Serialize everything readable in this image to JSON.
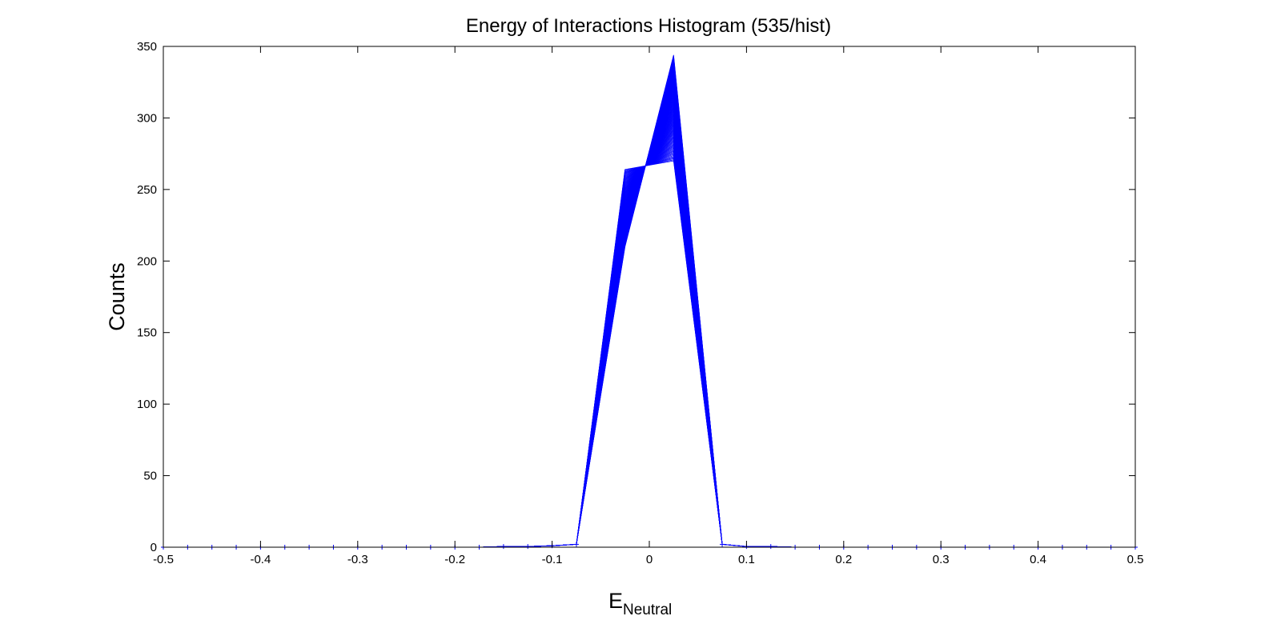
{
  "chart_data": {
    "type": "line",
    "title": "Energy of Interactions Histogram (535/hist)",
    "ylabel": "Counts",
    "xlabel_main": "E",
    "xlabel_sub": "Neutral",
    "xlim": [
      -0.5,
      0.5
    ],
    "ylim": [
      0,
      350
    ],
    "x_ticks": [
      -0.5,
      -0.4,
      -0.3,
      -0.2,
      -0.1,
      0,
      0.1,
      0.2,
      0.3,
      0.4,
      0.5
    ],
    "x_tick_labels": [
      "-0.5",
      "-0.4",
      "-0.3",
      "-0.2",
      "-0.1",
      "0",
      "0.1",
      "0.2",
      "0.3",
      "0.4",
      "0.5"
    ],
    "y_ticks": [
      0,
      50,
      100,
      150,
      200,
      250,
      300,
      350
    ],
    "y_tick_labels": [
      "0",
      "50",
      "100",
      "150",
      "200",
      "250",
      "300",
      "350"
    ],
    "grid": false,
    "line_color": "#0000ff",
    "marker": "+",
    "series_count": 100,
    "x": [
      -0.5,
      -0.475,
      -0.45,
      -0.425,
      -0.4,
      -0.375,
      -0.35,
      -0.325,
      -0.3,
      -0.275,
      -0.25,
      -0.225,
      -0.2,
      -0.175,
      -0.15,
      -0.125,
      -0.1,
      -0.075,
      -0.025,
      0.025,
      0.075,
      0.1,
      0.125,
      0.15,
      0.175,
      0.2,
      0.225,
      0.25,
      0.275,
      0.3,
      0.325,
      0.35,
      0.375,
      0.4,
      0.425,
      0.45,
      0.475,
      0.5
    ],
    "envelope": {
      "shared_values": [
        0,
        0,
        0,
        0,
        0,
        0,
        0,
        0,
        0,
        0,
        0,
        0,
        0,
        0,
        0.5,
        0.5,
        1,
        2,
        null,
        null,
        2,
        0.5,
        0.5,
        0,
        0,
        0,
        0,
        0,
        0,
        0,
        0,
        0,
        0,
        0,
        0,
        0,
        0,
        0
      ],
      "peak_left_range": [
        210,
        264
      ],
      "peak_right_range": [
        270,
        344
      ]
    }
  }
}
